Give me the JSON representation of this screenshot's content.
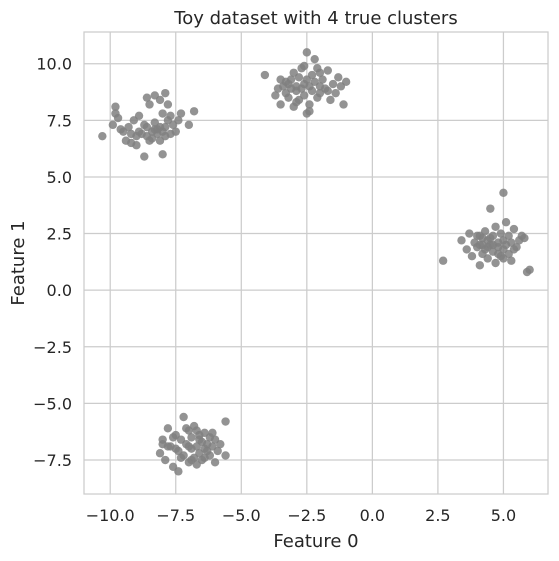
{
  "chart_data": {
    "type": "scatter",
    "title": "Toy dataset with 4 true clusters",
    "xlabel": "Feature 0",
    "ylabel": "Feature 1",
    "xlim": [
      -11.0,
      6.7
    ],
    "ylim": [
      -9.0,
      11.4
    ],
    "xticks": [
      -10.0,
      -7.5,
      -5.0,
      -2.5,
      0.0,
      2.5,
      5.0
    ],
    "xtick_labels": [
      "−10.0",
      "−7.5",
      "−5.0",
      "−2.5",
      "0.0",
      "2.5",
      "5.0"
    ],
    "yticks": [
      -7.5,
      -5.0,
      -2.5,
      0.0,
      2.5,
      5.0,
      7.5,
      10.0
    ],
    "ytick_labels": [
      "−7.5",
      "−5.0",
      "−2.5",
      "0.0",
      "2.5",
      "5.0",
      "7.5",
      "10.0"
    ],
    "grid": true,
    "point_color": "#808080",
    "grid_color": "#cccccc",
    "series": [
      {
        "points": [
          [
            -10.3,
            6.8
          ],
          [
            -9.9,
            7.3
          ],
          [
            -9.8,
            8.1
          ],
          [
            -9.8,
            7.8
          ],
          [
            -9.7,
            7.6
          ],
          [
            -9.5,
            7.0
          ],
          [
            -9.4,
            6.6
          ],
          [
            -9.3,
            7.2
          ],
          [
            -9.2,
            6.9
          ],
          [
            -9.1,
            7.5
          ],
          [
            -9.0,
            6.4
          ],
          [
            -8.9,
            7.0
          ],
          [
            -8.9,
            7.7
          ],
          [
            -8.8,
            6.9
          ],
          [
            -8.7,
            5.9
          ],
          [
            -8.7,
            7.3
          ],
          [
            -8.6,
            6.8
          ],
          [
            -8.6,
            7.2
          ],
          [
            -8.5,
            6.6
          ],
          [
            -8.5,
            8.2
          ],
          [
            -8.4,
            7.0
          ],
          [
            -8.4,
            6.7
          ],
          [
            -8.3,
            8.6
          ],
          [
            -8.3,
            7.4
          ],
          [
            -8.2,
            7.1
          ],
          [
            -8.2,
            6.9
          ],
          [
            -8.1,
            8.4
          ],
          [
            -8.1,
            6.6
          ],
          [
            -8.0,
            7.8
          ],
          [
            -8.0,
            6.0
          ],
          [
            -8.0,
            7.0
          ],
          [
            -7.9,
            8.7
          ],
          [
            -7.9,
            7.2
          ],
          [
            -7.9,
            6.8
          ],
          [
            -7.8,
            8.2
          ],
          [
            -7.8,
            7.5
          ],
          [
            -7.7,
            6.9
          ],
          [
            -7.6,
            7.3
          ],
          [
            -7.5,
            7.0
          ],
          [
            -7.4,
            7.5
          ],
          [
            -7.3,
            7.8
          ],
          [
            -7.0,
            7.3
          ],
          [
            -6.8,
            7.9
          ],
          [
            -9.6,
            7.1
          ],
          [
            -9.0,
            6.8
          ],
          [
            -8.6,
            8.5
          ],
          [
            -8.3,
            7.1
          ],
          [
            -7.7,
            7.7
          ],
          [
            -9.2,
            6.5
          ],
          [
            -8.1,
            7.2
          ]
        ]
      },
      {
        "points": [
          [
            -4.1,
            9.5
          ],
          [
            -3.7,
            8.6
          ],
          [
            -3.6,
            8.9
          ],
          [
            -3.5,
            8.2
          ],
          [
            -3.4,
            9.0
          ],
          [
            -3.3,
            8.7
          ],
          [
            -3.3,
            9.2
          ],
          [
            -3.2,
            8.5
          ],
          [
            -3.1,
            9.3
          ],
          [
            -3.1,
            8.9
          ],
          [
            -3.0,
            8.1
          ],
          [
            -3.0,
            9.6
          ],
          [
            -2.9,
            9.0
          ],
          [
            -2.9,
            8.8
          ],
          [
            -2.8,
            9.4
          ],
          [
            -2.8,
            8.4
          ],
          [
            -2.7,
            9.8
          ],
          [
            -2.7,
            8.9
          ],
          [
            -2.6,
            9.1
          ],
          [
            -2.6,
            8.6
          ],
          [
            -2.5,
            10.5
          ],
          [
            -2.5,
            9.3
          ],
          [
            -2.5,
            7.8
          ],
          [
            -2.4,
            9.0
          ],
          [
            -2.4,
            8.2
          ],
          [
            -2.3,
            9.5
          ],
          [
            -2.3,
            8.8
          ],
          [
            -2.2,
            10.2
          ],
          [
            -2.2,
            9.2
          ],
          [
            -2.1,
            8.5
          ],
          [
            -2.1,
            9.8
          ],
          [
            -2.0,
            9.0
          ],
          [
            -2.0,
            8.7
          ],
          [
            -1.9,
            9.3
          ],
          [
            -1.8,
            8.9
          ],
          [
            -1.7,
            9.7
          ],
          [
            -1.6,
            8.4
          ],
          [
            -1.5,
            9.1
          ],
          [
            -1.4,
            8.7
          ],
          [
            -1.3,
            9.4
          ],
          [
            -1.2,
            9.0
          ],
          [
            -1.1,
            8.2
          ],
          [
            -1.0,
            9.2
          ],
          [
            -2.6,
            9.9
          ],
          [
            -3.2,
            9.1
          ],
          [
            -2.9,
            8.3
          ],
          [
            -2.4,
            7.9
          ],
          [
            -2.0,
            9.6
          ],
          [
            -1.7,
            8.8
          ],
          [
            -3.5,
            9.3
          ]
        ]
      },
      {
        "points": [
          [
            -8.1,
            -7.2
          ],
          [
            -8.0,
            -6.8
          ],
          [
            -7.9,
            -7.5
          ],
          [
            -7.8,
            -6.1
          ],
          [
            -7.7,
            -6.9
          ],
          [
            -7.6,
            -7.8
          ],
          [
            -7.5,
            -6.4
          ],
          [
            -7.4,
            -7.1
          ],
          [
            -7.4,
            -8.0
          ],
          [
            -7.3,
            -6.6
          ],
          [
            -7.2,
            -5.6
          ],
          [
            -7.2,
            -7.3
          ],
          [
            -7.1,
            -6.8
          ],
          [
            -7.0,
            -7.6
          ],
          [
            -7.0,
            -6.2
          ],
          [
            -6.9,
            -7.0
          ],
          [
            -6.9,
            -6.5
          ],
          [
            -6.8,
            -7.4
          ],
          [
            -6.8,
            -6.0
          ],
          [
            -6.7,
            -6.9
          ],
          [
            -6.7,
            -7.7
          ],
          [
            -6.6,
            -6.4
          ],
          [
            -6.6,
            -7.2
          ],
          [
            -6.5,
            -6.7
          ],
          [
            -6.5,
            -7.5
          ],
          [
            -6.4,
            -6.3
          ],
          [
            -6.4,
            -7.0
          ],
          [
            -6.3,
            -6.8
          ],
          [
            -6.2,
            -7.3
          ],
          [
            -6.2,
            -6.5
          ],
          [
            -6.1,
            -6.9
          ],
          [
            -6.0,
            -7.6
          ],
          [
            -6.0,
            -6.6
          ],
          [
            -5.9,
            -7.1
          ],
          [
            -5.8,
            -6.8
          ],
          [
            -5.6,
            -5.8
          ],
          [
            -5.6,
            -7.3
          ],
          [
            -7.8,
            -6.9
          ],
          [
            -7.5,
            -7.0
          ],
          [
            -7.1,
            -6.1
          ],
          [
            -6.9,
            -7.5
          ],
          [
            -6.7,
            -6.2
          ],
          [
            -6.4,
            -7.4
          ],
          [
            -6.1,
            -6.3
          ],
          [
            -7.3,
            -7.4
          ],
          [
            -7.0,
            -6.9
          ],
          [
            -6.6,
            -6.6
          ],
          [
            -6.3,
            -7.1
          ],
          [
            -8.0,
            -6.6
          ],
          [
            -7.6,
            -6.5
          ]
        ]
      },
      {
        "points": [
          [
            2.7,
            1.3
          ],
          [
            3.4,
            2.2
          ],
          [
            3.6,
            1.8
          ],
          [
            3.7,
            2.5
          ],
          [
            3.8,
            1.5
          ],
          [
            3.9,
            2.1
          ],
          [
            4.0,
            1.9
          ],
          [
            4.0,
            2.4
          ],
          [
            4.1,
            1.1
          ],
          [
            4.1,
            2.0
          ],
          [
            4.2,
            1.6
          ],
          [
            4.2,
            2.3
          ],
          [
            4.3,
            2.6
          ],
          [
            4.3,
            1.8
          ],
          [
            4.4,
            2.2
          ],
          [
            4.4,
            1.4
          ],
          [
            4.5,
            3.6
          ],
          [
            4.5,
            2.0
          ],
          [
            4.6,
            1.7
          ],
          [
            4.6,
            2.4
          ],
          [
            4.7,
            2.8
          ],
          [
            4.7,
            1.2
          ],
          [
            4.8,
            2.1
          ],
          [
            4.8,
            1.9
          ],
          [
            4.9,
            2.5
          ],
          [
            4.9,
            1.5
          ],
          [
            5.0,
            4.3
          ],
          [
            5.0,
            2.2
          ],
          [
            5.0,
            1.8
          ],
          [
            5.1,
            2.0
          ],
          [
            5.1,
            3.0
          ],
          [
            5.2,
            1.6
          ],
          [
            5.2,
            2.4
          ],
          [
            5.3,
            2.1
          ],
          [
            5.3,
            1.3
          ],
          [
            5.4,
            2.7
          ],
          [
            5.5,
            1.9
          ],
          [
            5.6,
            2.2
          ],
          [
            5.7,
            2.4
          ],
          [
            5.9,
            0.8
          ],
          [
            6.0,
            0.9
          ],
          [
            5.8,
            2.3
          ],
          [
            4.2,
            2.0
          ],
          [
            4.5,
            2.3
          ],
          [
            4.8,
            1.6
          ],
          [
            4.4,
            1.9
          ],
          [
            4.1,
            2.4
          ],
          [
            5.0,
            1.4
          ],
          [
            5.4,
            1.8
          ],
          [
            4.6,
            2.0
          ]
        ]
      }
    ]
  }
}
